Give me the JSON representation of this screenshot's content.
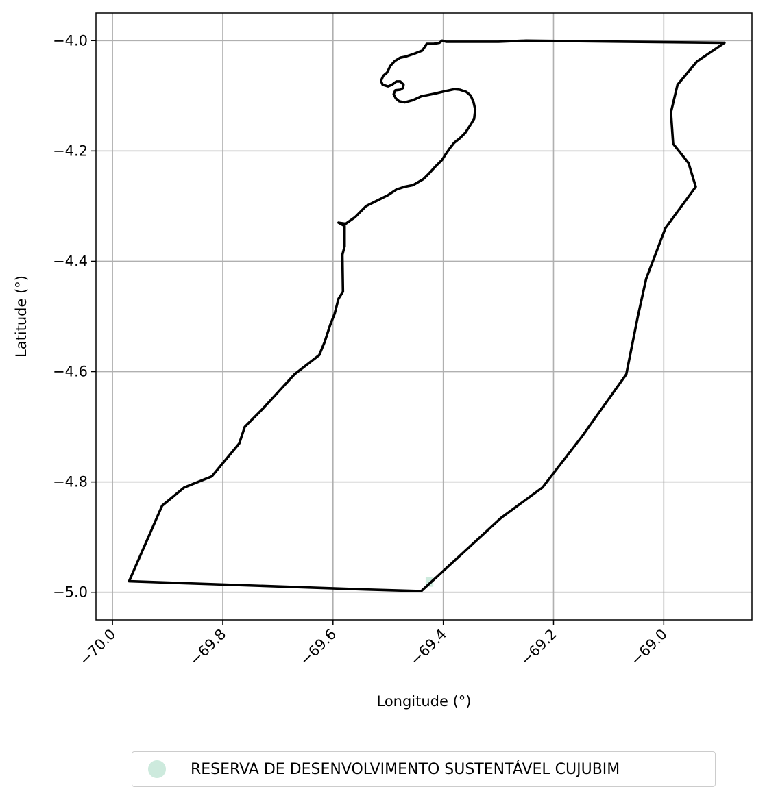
{
  "chart_data": {
    "type": "map",
    "xlabel": "Longitude (°)",
    "ylabel": "Latitude (°)",
    "xlim": [
      -70.03,
      -68.84
    ],
    "ylim": [
      -5.05,
      -3.95
    ],
    "x_ticks": [
      -70.0,
      -69.8,
      -69.6,
      -69.4,
      -69.2,
      -69.0
    ],
    "x_tick_labels": [
      "−70.0",
      "−69.8",
      "−69.6",
      "−69.4",
      "−69.2",
      "−69.0"
    ],
    "y_ticks": [
      -4.0,
      -4.2,
      -4.4,
      -4.6,
      -4.8,
      -5.0
    ],
    "y_tick_labels": [
      "−4.0",
      "−4.2",
      "−4.4",
      "−4.6",
      "−4.8",
      "−5.0"
    ],
    "grid": true,
    "boundary_color": "#000000",
    "area_color": "#cdeadd",
    "legend_placement": "bottom-center, below plot",
    "legend": [
      {
        "label": "RESERVA DE DESENVOLVIMENTO SUSTENTÁVEL CUJUBIM",
        "color": "#cdeadd",
        "marker": "circle"
      }
    ],
    "boundary": [
      [
        -68.89,
        -4.004
      ],
      [
        -68.94,
        -4.038
      ],
      [
        -68.975,
        -4.08
      ],
      [
        -68.987,
        -4.13
      ],
      [
        -68.983,
        -4.187
      ],
      [
        -68.955,
        -4.222
      ],
      [
        -68.942,
        -4.265
      ],
      [
        -68.997,
        -4.34
      ],
      [
        -69.032,
        -4.432
      ],
      [
        -69.047,
        -4.5
      ],
      [
        -69.068,
        -4.605
      ],
      [
        -69.148,
        -4.717
      ],
      [
        -69.22,
        -4.81
      ],
      [
        -69.295,
        -4.865
      ],
      [
        -69.44,
        -4.998
      ],
      [
        -69.54,
        -4.995
      ],
      [
        -69.97,
        -4.98
      ],
      [
        -69.91,
        -4.843
      ],
      [
        -69.87,
        -4.81
      ],
      [
        -69.82,
        -4.79
      ],
      [
        -69.77,
        -4.73
      ],
      [
        -69.76,
        -4.7
      ],
      [
        -69.73,
        -4.67
      ],
      [
        -69.67,
        -4.605
      ],
      [
        -69.625,
        -4.57
      ],
      [
        -69.615,
        -4.546
      ],
      [
        -69.605,
        -4.515
      ],
      [
        -69.597,
        -4.495
      ],
      [
        -69.59,
        -4.468
      ],
      [
        -69.582,
        -4.455
      ],
      [
        -69.583,
        -4.388
      ],
      [
        -69.579,
        -4.373
      ],
      [
        -69.579,
        -4.336
      ],
      [
        -69.59,
        -4.33
      ],
      [
        -69.577,
        -4.332
      ],
      [
        -69.56,
        -4.32
      ],
      [
        -69.54,
        -4.3
      ],
      [
        -69.52,
        -4.29
      ],
      [
        -69.5,
        -4.28
      ],
      [
        -69.485,
        -4.27
      ],
      [
        -69.47,
        -4.265
      ],
      [
        -69.455,
        -4.262
      ],
      [
        -69.436,
        -4.251
      ],
      [
        -69.425,
        -4.24
      ],
      [
        -69.414,
        -4.228
      ],
      [
        -69.402,
        -4.216
      ],
      [
        -69.395,
        -4.205
      ],
      [
        -69.388,
        -4.195
      ],
      [
        -69.38,
        -4.185
      ],
      [
        -69.37,
        -4.177
      ],
      [
        -69.36,
        -4.167
      ],
      [
        -69.352,
        -4.155
      ],
      [
        -69.344,
        -4.142
      ],
      [
        -69.342,
        -4.125
      ],
      [
        -69.345,
        -4.112
      ],
      [
        -69.35,
        -4.1
      ],
      [
        -69.358,
        -4.093
      ],
      [
        -69.37,
        -4.089
      ],
      [
        -69.38,
        -4.088
      ],
      [
        -69.398,
        -4.092
      ],
      [
        -69.415,
        -4.096
      ],
      [
        -69.44,
        -4.101
      ],
      [
        -69.455,
        -4.108
      ],
      [
        -69.47,
        -4.112
      ],
      [
        -69.48,
        -4.11
      ],
      [
        -69.486,
        -4.105
      ],
      [
        -69.49,
        -4.097
      ],
      [
        -69.487,
        -4.09
      ],
      [
        -69.478,
        -4.089
      ],
      [
        -69.473,
        -4.086
      ],
      [
        -69.472,
        -4.08
      ],
      [
        -69.478,
        -4.074
      ],
      [
        -69.485,
        -4.074
      ],
      [
        -69.493,
        -4.08
      ],
      [
        -69.5,
        -4.083
      ],
      [
        -69.51,
        -4.08
      ],
      [
        -69.513,
        -4.073
      ],
      [
        -69.509,
        -4.064
      ],
      [
        -69.502,
        -4.058
      ],
      [
        -69.496,
        -4.046
      ],
      [
        -69.488,
        -4.037
      ],
      [
        -69.478,
        -4.031
      ],
      [
        -69.468,
        -4.029
      ],
      [
        -69.453,
        -4.024
      ],
      [
        -69.438,
        -4.018
      ],
      [
        -69.43,
        -4.006
      ],
      [
        -69.418,
        -4.006
      ],
      [
        -69.407,
        -4.004
      ],
      [
        -69.402,
        -4.0
      ],
      [
        -69.395,
        -4.002
      ],
      [
        -69.3,
        -4.002
      ],
      [
        -69.25,
        -4.0
      ],
      [
        -68.89,
        -4.004
      ]
    ],
    "highlight_area": [
      [
        -69.432,
        -4.972
      ],
      [
        -69.418,
        -4.972
      ],
      [
        -69.418,
        -4.99
      ],
      [
        -69.432,
        -4.99
      ]
    ]
  }
}
